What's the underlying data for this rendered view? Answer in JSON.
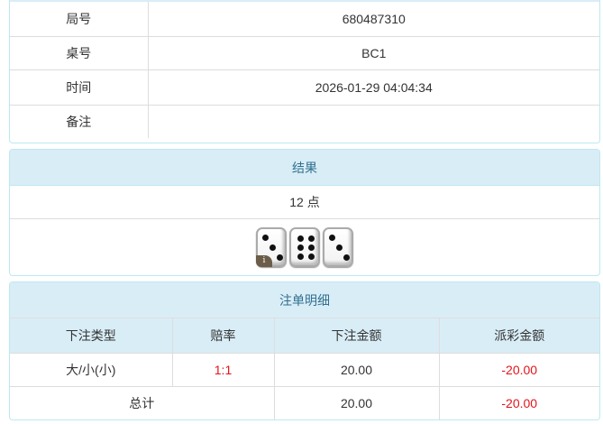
{
  "info": {
    "rows": [
      {
        "label": "局号",
        "value": "680487310"
      },
      {
        "label": "桌号",
        "value": "BC1"
      },
      {
        "label": "时间",
        "value": "2026-01-29 04:04:34"
      },
      {
        "label": "备注",
        "value": ""
      }
    ]
  },
  "result": {
    "title": "结果",
    "points": "12 点",
    "dice": [
      3,
      6,
      3
    ],
    "badge": "i"
  },
  "bets": {
    "title": "注单明细",
    "headers": [
      "下注类型",
      "赔率",
      "下注金额",
      "派彩金额"
    ],
    "rows": [
      {
        "type": "大/小(小)",
        "odds": "1:1",
        "amount": "20.00",
        "payout": "-20.00"
      }
    ],
    "total": {
      "label": "总计",
      "amount": "20.00",
      "payout": "-20.00"
    }
  },
  "colors": {
    "header_bg": "#d9edf7",
    "header_text": "#31708f",
    "negative": "#e4141b"
  }
}
